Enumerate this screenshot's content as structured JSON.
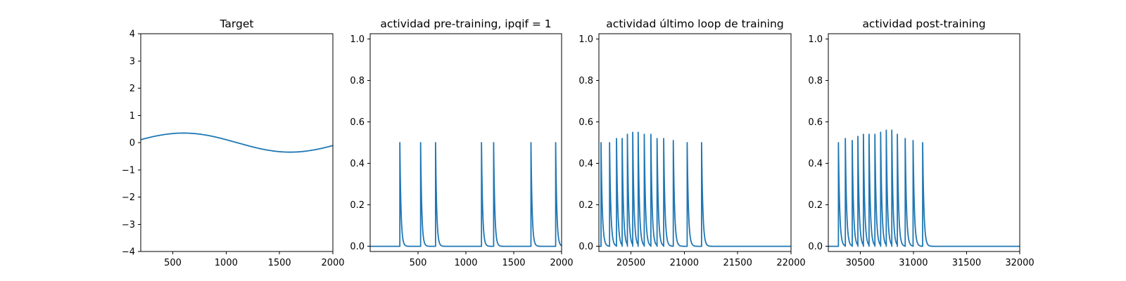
{
  "chart_data": [
    {
      "type": "line",
      "title": "Target",
      "xlabel": "",
      "ylabel": "",
      "xlim": [
        200,
        2000
      ],
      "ylim": [
        -4,
        4
      ],
      "xticks": [
        500,
        1000,
        1500,
        2000
      ],
      "yticks": [
        -4,
        -3,
        -2,
        -1,
        0,
        1,
        2,
        3,
        4
      ],
      "grid": false,
      "series": [
        {
          "style": "sine",
          "amplitude": 0.35,
          "period": 2000,
          "phase_x": 100,
          "color": "#1f77b4"
        }
      ]
    },
    {
      "type": "line",
      "title": "actividad pre-training, ipqif = 1",
      "xlabel": "",
      "ylabel": "",
      "xlim": [
        0,
        2000
      ],
      "ylim": [
        -0.025,
        1.025
      ],
      "xticks": [
        500,
        1000,
        1500,
        2000
      ],
      "yticks": [
        0.0,
        0.2,
        0.4,
        0.6,
        0.8,
        1.0
      ],
      "grid": false,
      "series": [
        {
          "style": "spikes",
          "x_start": 0,
          "x_end": 2000,
          "decay": 12,
          "spikes": [
            {
              "x": 310,
              "y": 0.5
            },
            {
              "x": 527,
              "y": 0.5
            },
            {
              "x": 683,
              "y": 0.5
            },
            {
              "x": 1163,
              "y": 0.5
            },
            {
              "x": 1290,
              "y": 0.5
            },
            {
              "x": 1680,
              "y": 0.5
            },
            {
              "x": 1938,
              "y": 0.5
            }
          ],
          "color": "#1f77b4"
        }
      ]
    },
    {
      "type": "line",
      "title": "actividad último loop de training",
      "xlabel": "",
      "ylabel": "",
      "xlim": [
        20200,
        22000
      ],
      "ylim": [
        -0.025,
        1.025
      ],
      "xticks": [
        20500,
        21000,
        21500,
        22000
      ],
      "yticks": [
        0.0,
        0.2,
        0.4,
        0.6,
        0.8,
        1.0
      ],
      "grid": false,
      "series": [
        {
          "style": "spikes",
          "x_start": 20200,
          "x_end": 22000,
          "decay": 12,
          "spikes": [
            {
              "x": 20220,
              "y": 0.5
            },
            {
              "x": 20300,
              "y": 0.5
            },
            {
              "x": 20365,
              "y": 0.52
            },
            {
              "x": 20418,
              "y": 0.52
            },
            {
              "x": 20467,
              "y": 0.54
            },
            {
              "x": 20517,
              "y": 0.55
            },
            {
              "x": 20568,
              "y": 0.55
            },
            {
              "x": 20625,
              "y": 0.54
            },
            {
              "x": 20687,
              "y": 0.54
            },
            {
              "x": 20745,
              "y": 0.52
            },
            {
              "x": 20807,
              "y": 0.52
            },
            {
              "x": 20897,
              "y": 0.51
            },
            {
              "x": 21027,
              "y": 0.5
            },
            {
              "x": 21162,
              "y": 0.5
            }
          ],
          "color": "#1f77b4"
        }
      ]
    },
    {
      "type": "line",
      "title": "actividad post-training",
      "xlabel": "",
      "ylabel": "",
      "xlim": [
        30200,
        32000
      ],
      "ylim": [
        -0.025,
        1.025
      ],
      "xticks": [
        30500,
        31000,
        31500,
        32000
      ],
      "yticks": [
        0.0,
        0.2,
        0.4,
        0.6,
        0.8,
        1.0
      ],
      "grid": false,
      "series": [
        {
          "style": "spikes",
          "x_start": 30200,
          "x_end": 32000,
          "decay": 12,
          "spikes": [
            {
              "x": 30295,
              "y": 0.5
            },
            {
              "x": 30360,
              "y": 0.52
            },
            {
              "x": 30425,
              "y": 0.51
            },
            {
              "x": 30478,
              "y": 0.53
            },
            {
              "x": 30530,
              "y": 0.54
            },
            {
              "x": 30583,
              "y": 0.54
            },
            {
              "x": 30638,
              "y": 0.54
            },
            {
              "x": 30692,
              "y": 0.55
            },
            {
              "x": 30745,
              "y": 0.56
            },
            {
              "x": 30797,
              "y": 0.56
            },
            {
              "x": 30849,
              "y": 0.54
            },
            {
              "x": 30923,
              "y": 0.52
            },
            {
              "x": 30997,
              "y": 0.51
            },
            {
              "x": 31087,
              "y": 0.5
            }
          ],
          "color": "#1f77b4"
        }
      ]
    }
  ]
}
